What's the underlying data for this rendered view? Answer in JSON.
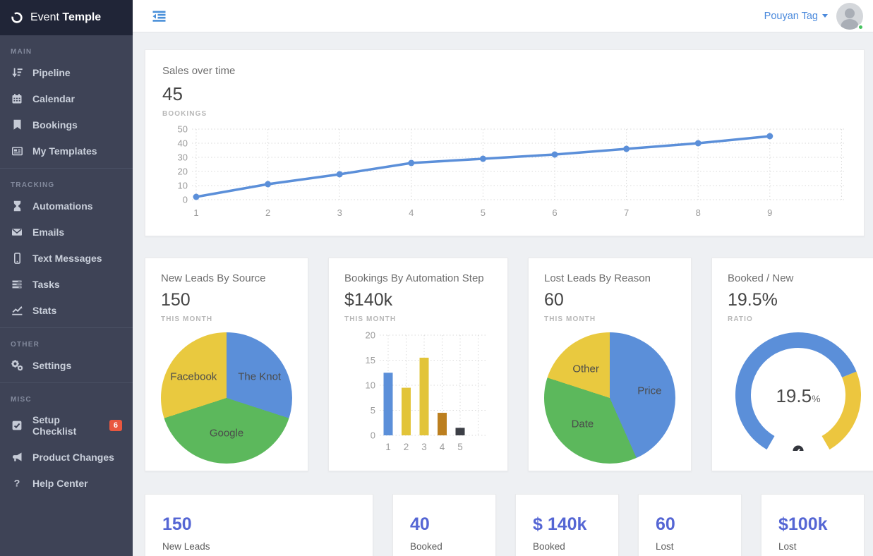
{
  "app": {
    "brand_first": "Event",
    "brand_second": "Temple"
  },
  "topbar": {
    "user_name": "Pouyan Tag",
    "menu_icon": "outdent-icon",
    "caret_icon": "caret-down-icon",
    "avatar_icon": "user-avatar",
    "status": "online"
  },
  "sidebar": {
    "sections": [
      {
        "label": "MAIN",
        "items": [
          {
            "label": "Pipeline",
            "icon": "sort-amount-icon"
          },
          {
            "label": "Calendar",
            "icon": "calendar-icon"
          },
          {
            "label": "Bookings",
            "icon": "bookmark-icon"
          },
          {
            "label": "My Templates",
            "icon": "templates-icon"
          }
        ]
      },
      {
        "label": "TRACKING",
        "items": [
          {
            "label": "Automations",
            "icon": "hourglass-icon"
          },
          {
            "label": "Emails",
            "icon": "envelope-icon"
          },
          {
            "label": "Text Messages",
            "icon": "mobile-icon"
          },
          {
            "label": "Tasks",
            "icon": "tasks-icon"
          },
          {
            "label": "Stats",
            "icon": "chart-line-icon"
          }
        ]
      },
      {
        "label": "OTHER",
        "items": [
          {
            "label": "Settings",
            "icon": "gears-icon"
          }
        ]
      },
      {
        "label": "MISC",
        "items": [
          {
            "label": "Setup Checklist",
            "icon": "check-square-icon",
            "badge": "6"
          },
          {
            "label": "Product Changes",
            "icon": "bullhorn-icon"
          },
          {
            "label": "Help Center",
            "icon": "question-icon"
          }
        ]
      }
    ]
  },
  "chart_data": [
    {
      "type": "line",
      "title": "Sales over time",
      "headline_value": "45",
      "headline_label": "BOOKINGS",
      "x": [
        1,
        2,
        3,
        4,
        5,
        6,
        7,
        8,
        9
      ],
      "values": [
        2,
        11,
        18,
        26,
        29,
        32,
        36,
        40,
        45
      ],
      "ylim": [
        0,
        50
      ],
      "yticks": [
        0,
        10,
        20,
        30,
        40,
        50
      ],
      "line_color": "#5b8fd9",
      "grid": true,
      "legend": "none"
    },
    {
      "type": "pie",
      "title": "New Leads By Source",
      "headline_value": "150",
      "headline_label": "THIS MONTH",
      "slices": [
        {
          "label": "The Knot",
          "value": 45,
          "color": "#5b8fd9"
        },
        {
          "label": "Google",
          "value": 60,
          "color": "#5cb85c"
        },
        {
          "label": "Facebook",
          "value": 45,
          "color": "#e9c93f"
        }
      ]
    },
    {
      "type": "bar",
      "title": "Bookings By Automation Step",
      "headline_value": "$140k",
      "headline_label": "THIS MONTH",
      "categories": [
        "1",
        "2",
        "3",
        "4",
        "5"
      ],
      "values": [
        12.5,
        9.5,
        15.5,
        4.5,
        1.5
      ],
      "bar_colors": [
        "#5b8fd9",
        "#e2c439",
        "#e2c439",
        "#bc7f1f",
        "#3c3f46"
      ],
      "ylim": [
        0,
        20
      ],
      "yticks": [
        0,
        5,
        10,
        15,
        20
      ],
      "grid": true
    },
    {
      "type": "pie",
      "title": "Lost Leads By Reason",
      "headline_value": "60",
      "headline_label": "THIS MONTH",
      "slices": [
        {
          "label": "Price",
          "value": 26,
          "color": "#5b8fd9"
        },
        {
          "label": "Date",
          "value": 22,
          "color": "#5cb85c"
        },
        {
          "label": "Other",
          "value": 12,
          "color": "#e9c93f"
        }
      ]
    },
    {
      "type": "gauge",
      "title": "Booked / New",
      "headline_value": "19.5%",
      "headline_label": "RATIO",
      "center_value": "19.5",
      "center_unit": "%",
      "value_pct": 19.5,
      "arc_start_deg": -150,
      "arc_split_deg": 68,
      "arc_end_deg": 150,
      "primary_color": "#5b8fd9",
      "secondary_color": "#ecc63f",
      "icon": "gauge-icon"
    }
  ],
  "stats": [
    {
      "value": "150",
      "label": "New Leads"
    },
    {
      "value": "40",
      "label": "Booked"
    },
    {
      "value": "$ 140k",
      "label": "Booked"
    },
    {
      "value": "60",
      "label": "Lost"
    },
    {
      "value": "$100k",
      "label": "Lost"
    }
  ],
  "colors": {
    "accent_link": "#4a89dc",
    "chart_blue": "#5b8fd9",
    "chart_green": "#5cb85c",
    "chart_yellow": "#e9c93f",
    "stat_number": "#5566d4",
    "badge_red": "#e9573f",
    "sidebar_bg": "#3e4356",
    "sidebar_header_bg": "#202537",
    "online_green": "#46c35f"
  }
}
